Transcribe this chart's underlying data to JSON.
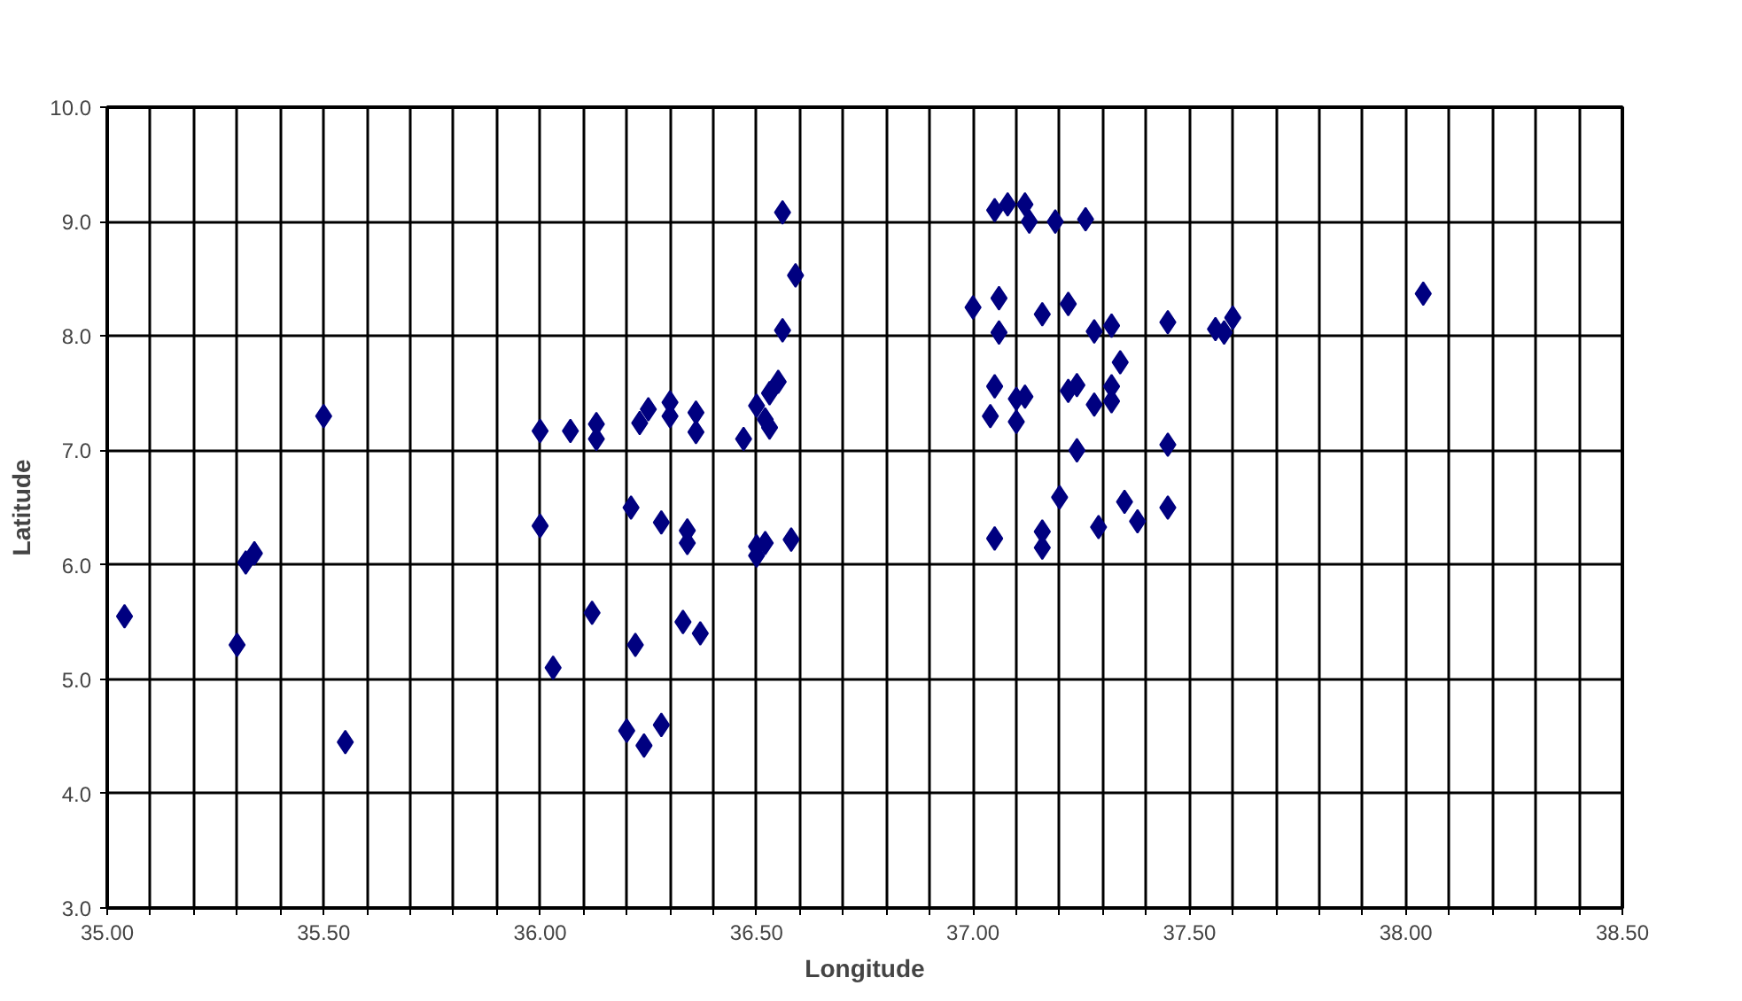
{
  "chart_data": {
    "type": "scatter",
    "xlabel": "Longitude",
    "ylabel": "Latitude",
    "marker": "diamond",
    "grid": true,
    "xlim": [
      35.0,
      38.5
    ],
    "ylim": [
      3.0,
      10.0
    ],
    "xticks": [
      {
        "value": 35.0,
        "label": "35.00"
      },
      {
        "value": 35.1,
        "label": null
      },
      {
        "value": 35.2,
        "label": null
      },
      {
        "value": 35.3,
        "label": null
      },
      {
        "value": 35.4,
        "label": null
      },
      {
        "value": 35.5,
        "label": "35.50"
      },
      {
        "value": 35.6,
        "label": null
      },
      {
        "value": 35.7,
        "label": null
      },
      {
        "value": 35.8,
        "label": null
      },
      {
        "value": 35.9,
        "label": null
      },
      {
        "value": 36.0,
        "label": "36.00"
      },
      {
        "value": 36.1,
        "label": null
      },
      {
        "value": 36.2,
        "label": null
      },
      {
        "value": 36.3,
        "label": null
      },
      {
        "value": 36.4,
        "label": null
      },
      {
        "value": 36.5,
        "label": "36.50"
      },
      {
        "value": 36.6,
        "label": null
      },
      {
        "value": 36.7,
        "label": null
      },
      {
        "value": 36.8,
        "label": null
      },
      {
        "value": 36.9,
        "label": null
      },
      {
        "value": 37.0,
        "label": "37.00"
      },
      {
        "value": 37.1,
        "label": null
      },
      {
        "value": 37.2,
        "label": null
      },
      {
        "value": 37.3,
        "label": null
      },
      {
        "value": 37.4,
        "label": null
      },
      {
        "value": 37.5,
        "label": "37.50"
      },
      {
        "value": 37.6,
        "label": null
      },
      {
        "value": 37.7,
        "label": null
      },
      {
        "value": 37.8,
        "label": null
      },
      {
        "value": 37.9,
        "label": null
      },
      {
        "value": 38.0,
        "label": "38.00"
      },
      {
        "value": 38.1,
        "label": null
      },
      {
        "value": 38.2,
        "label": null
      },
      {
        "value": 38.3,
        "label": null
      },
      {
        "value": 38.4,
        "label": null
      },
      {
        "value": 38.5,
        "label": "38.50"
      }
    ],
    "yticks": [
      {
        "value": 3,
        "label": "3.0"
      },
      {
        "value": 4,
        "label": "4.0"
      },
      {
        "value": 5,
        "label": "5.0"
      },
      {
        "value": 6,
        "label": "6.0"
      },
      {
        "value": 7,
        "label": "7.0"
      },
      {
        "value": 8,
        "label": "8.0"
      },
      {
        "value": 9,
        "label": "9.0"
      },
      {
        "value": 10,
        "label": "10.0"
      }
    ],
    "series": [
      {
        "color": "#000080",
        "x": [
          35.04,
          35.3,
          35.32,
          35.34,
          35.5,
          35.55,
          36.0,
          36.07,
          36.13,
          36.13,
          36.0,
          36.03,
          36.12,
          36.21,
          36.22,
          36.2,
          36.24,
          36.28,
          36.23,
          36.25,
          36.3,
          36.3,
          36.36,
          36.36,
          36.28,
          36.34,
          36.34,
          36.33,
          36.37,
          36.47,
          36.5,
          36.52,
          36.53,
          36.53,
          36.55,
          36.56,
          36.56,
          36.59,
          36.5,
          36.52,
          36.58,
          36.5,
          37.05,
          37.08,
          37.12,
          37.13,
          37.19,
          37.26,
          37.0,
          37.06,
          37.06,
          37.16,
          37.22,
          37.28,
          37.32,
          37.45,
          37.56,
          37.6,
          37.58,
          37.34,
          37.05,
          37.04,
          37.1,
          37.12,
          37.1,
          37.22,
          37.24,
          37.28,
          37.32,
          37.32,
          37.24,
          37.45,
          37.2,
          37.35,
          37.38,
          37.29,
          37.45,
          37.05,
          37.16,
          37.16,
          38.04
        ],
        "values": [
          5.55,
          5.3,
          6.02,
          6.1,
          7.3,
          4.45,
          7.17,
          7.17,
          7.23,
          7.1,
          6.34,
          5.1,
          5.58,
          6.5,
          5.3,
          4.55,
          4.42,
          4.6,
          7.24,
          7.36,
          7.42,
          7.3,
          7.33,
          7.16,
          6.37,
          6.3,
          6.19,
          5.5,
          5.4,
          7.1,
          7.39,
          7.27,
          7.2,
          7.5,
          7.6,
          8.05,
          9.08,
          8.53,
          6.16,
          6.19,
          6.22,
          6.08,
          9.1,
          9.15,
          9.15,
          9.0,
          9.0,
          9.02,
          8.25,
          8.33,
          8.03,
          8.19,
          8.28,
          8.04,
          8.09,
          8.12,
          8.06,
          8.16,
          8.03,
          7.77,
          7.56,
          7.3,
          7.45,
          7.47,
          7.25,
          7.52,
          7.57,
          7.4,
          7.56,
          7.43,
          7.0,
          7.05,
          6.59,
          6.55,
          6.38,
          6.33,
          6.5,
          6.23,
          6.29,
          6.15,
          8.37
        ]
      }
    ]
  }
}
